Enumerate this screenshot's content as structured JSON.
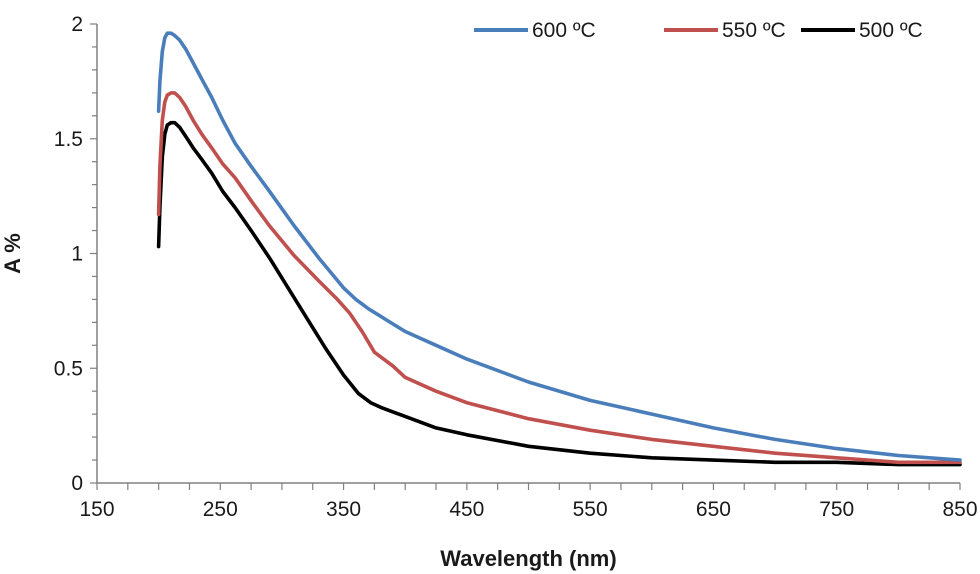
{
  "chart_data": {
    "type": "line",
    "title": "",
    "xlabel": "Wavelength (nm)",
    "ylabel": "A %",
    "xlim": [
      150,
      850
    ],
    "ylim": [
      0,
      2
    ],
    "xticks": [
      150,
      250,
      350,
      450,
      550,
      650,
      750,
      850
    ],
    "yticks": [
      0,
      0.5,
      1,
      1.5,
      2
    ],
    "ytick_labels": [
      "0",
      "0.5",
      "1",
      "1.5",
      "2"
    ],
    "grid": false,
    "legend_position": "top-right",
    "series": [
      {
        "name": "600 ºC",
        "color": "#4a7ebb",
        "x": [
          200,
          201,
          203,
          205,
          207,
          210,
          213,
          217,
          222,
          228,
          235,
          243,
          252,
          262,
          275,
          290,
          310,
          330,
          350,
          360,
          370,
          385,
          400,
          425,
          450,
          500,
          550,
          600,
          650,
          700,
          750,
          800,
          850
        ],
        "y": [
          1.62,
          1.75,
          1.88,
          1.94,
          1.96,
          1.96,
          1.95,
          1.93,
          1.89,
          1.83,
          1.76,
          1.68,
          1.58,
          1.48,
          1.38,
          1.27,
          1.12,
          0.98,
          0.85,
          0.8,
          0.76,
          0.71,
          0.66,
          0.6,
          0.54,
          0.44,
          0.36,
          0.3,
          0.24,
          0.19,
          0.15,
          0.12,
          0.1
        ]
      },
      {
        "name": "550 ºC",
        "color": "#c0504d",
        "x": [
          200,
          201,
          203,
          205,
          207,
          210,
          213,
          217,
          222,
          228,
          235,
          243,
          252,
          262,
          275,
          290,
          310,
          330,
          345,
          355,
          365,
          375,
          390,
          400,
          425,
          450,
          500,
          550,
          600,
          650,
          700,
          750,
          800,
          850
        ],
        "y": [
          1.17,
          1.38,
          1.58,
          1.66,
          1.69,
          1.7,
          1.7,
          1.68,
          1.64,
          1.58,
          1.52,
          1.46,
          1.39,
          1.33,
          1.23,
          1.12,
          0.99,
          0.88,
          0.8,
          0.74,
          0.66,
          0.57,
          0.51,
          0.46,
          0.4,
          0.35,
          0.28,
          0.23,
          0.19,
          0.16,
          0.13,
          0.11,
          0.09,
          0.09
        ]
      },
      {
        "name": "500 ºC",
        "color": "#000000",
        "x": [
          200,
          201,
          203,
          205,
          207,
          210,
          213,
          217,
          222,
          228,
          235,
          243,
          252,
          262,
          275,
          290,
          305,
          320,
          335,
          350,
          362,
          372,
          380,
          390,
          400,
          425,
          450,
          500,
          550,
          600,
          650,
          700,
          750,
          800,
          850
        ],
        "y": [
          1.03,
          1.2,
          1.42,
          1.52,
          1.56,
          1.57,
          1.57,
          1.55,
          1.51,
          1.46,
          1.41,
          1.35,
          1.27,
          1.2,
          1.1,
          0.98,
          0.85,
          0.72,
          0.59,
          0.47,
          0.39,
          0.35,
          0.33,
          0.31,
          0.29,
          0.24,
          0.21,
          0.16,
          0.13,
          0.11,
          0.1,
          0.09,
          0.09,
          0.08,
          0.08
        ]
      }
    ]
  }
}
